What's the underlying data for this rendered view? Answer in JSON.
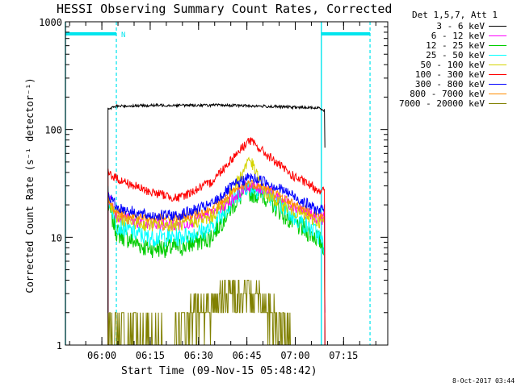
{
  "chart_data": {
    "type": "line",
    "title": "HESSI Observing Summary Count Rates, Corrected",
    "xlabel": "Start Time (09-Nov-15 05:48:42)",
    "ylabel": "Corrected Count Rate (s⁻¹ detector⁻¹)",
    "y_scale": "log",
    "ylim": [
      1,
      1000
    ],
    "y_ticks": [
      "1",
      "10",
      "100",
      "1000"
    ],
    "x_ticks": [
      "06:00",
      "06:15",
      "06:30",
      "06:45",
      "07:00",
      "07:15"
    ],
    "x_tick_minutes": [
      11.3,
      26.3,
      41.3,
      56.3,
      71.3,
      86.3
    ],
    "xlim_minutes": [
      0,
      100
    ],
    "grid": false,
    "legend_position": "right",
    "legend_title": "Det 1,5,7, Att 1",
    "annotation": "N",
    "night_intervals_minutes": [
      [
        0,
        15.8
      ],
      [
        79.4,
        94.5
      ]
    ],
    "series": [
      {
        "name": "3 - 6 keV",
        "color": "#000000",
        "x": [
          13.2,
          16,
          30,
          50,
          60,
          79,
          80.5
        ],
        "y": [
          155,
          165,
          168,
          168,
          165,
          158,
          150
        ]
      },
      {
        "name": "6 - 12 keV",
        "color": "#ff00ff",
        "x": [
          13.2,
          16,
          25,
          35,
          45,
          52,
          56,
          62,
          70,
          78,
          80.5
        ],
        "y": [
          24,
          16,
          13,
          13,
          16,
          23,
          30,
          28,
          20,
          15,
          15
        ]
      },
      {
        "name": "12 - 25 keV",
        "color": "#00cc00",
        "x": [
          13.2,
          16,
          25,
          35,
          45,
          52,
          56,
          62,
          70,
          78,
          80.5
        ],
        "y": [
          20,
          11,
          8,
          8,
          10,
          20,
          27,
          24,
          14,
          10,
          8
        ]
      },
      {
        "name": "25 - 50 keV",
        "color": "#00ffff",
        "x": [
          13.2,
          16,
          25,
          35,
          45,
          52,
          56,
          62,
          70,
          78,
          80.5
        ],
        "y": [
          25,
          13,
          10,
          10,
          12,
          22,
          30,
          26,
          16,
          11,
          8
        ]
      },
      {
        "name": "50 - 100 keV",
        "color": "#d4d400",
        "x": [
          13.2,
          16,
          25,
          35,
          45,
          50,
          55,
          57,
          59,
          62,
          70,
          78,
          80.5
        ],
        "y": [
          23,
          15,
          13,
          13,
          15,
          22,
          40,
          55,
          40,
          25,
          18,
          14,
          14
        ]
      },
      {
        "name": "100 - 300 keV",
        "color": "#ff0000",
        "x": [
          13.2,
          16,
          25,
          35,
          45,
          52,
          57,
          62,
          70,
          78,
          80.5
        ],
        "y": [
          40,
          35,
          27,
          23,
          32,
          55,
          80,
          60,
          38,
          28,
          27
        ]
      },
      {
        "name": "300 - 800 keV",
        "color": "#0000ff",
        "x": [
          13.2,
          16,
          25,
          35,
          45,
          52,
          57,
          62,
          70,
          78,
          80.5
        ],
        "y": [
          25,
          19,
          16,
          16,
          20,
          30,
          36,
          33,
          25,
          18,
          18
        ]
      },
      {
        "name": "800 - 7000 keV",
        "color": "#ff8c00",
        "x": [
          13.2,
          16,
          25,
          35,
          45,
          52,
          57,
          62,
          70,
          78,
          80.5
        ],
        "y": [
          22,
          17,
          15,
          15,
          18,
          26,
          32,
          29,
          21,
          16,
          15
        ]
      },
      {
        "name": "7000 - 20000 keV",
        "color": "#808000",
        "x": [
          13.2,
          16,
          33,
          36,
          42,
          48,
          52,
          57,
          62,
          66,
          70,
          80.5
        ],
        "y": [
          1.5,
          1.5,
          1,
          1.5,
          2,
          2.5,
          3,
          3,
          2.5,
          1.5,
          1,
          1
        ]
      }
    ]
  }
}
